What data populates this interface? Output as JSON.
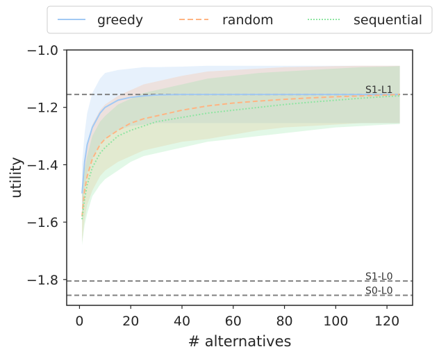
{
  "chart_data": {
    "type": "line",
    "title": "",
    "xlabel": "# alternatives",
    "ylabel": "utility",
    "xlim": [
      -5,
      130
    ],
    "ylim": [
      -1.89,
      -1.0
    ],
    "xticks": [
      0,
      20,
      40,
      60,
      80,
      100,
      120
    ],
    "yticks": [
      -1.0,
      -1.2,
      -1.4,
      -1.6,
      -1.8
    ],
    "ytick_labels": [
      "−1.0",
      "−1.2",
      "−1.4",
      "−1.6",
      "−1.8"
    ],
    "grid": false,
    "legend_position": "top-outside",
    "x": [
      1,
      2,
      3,
      5,
      8,
      10,
      15,
      20,
      25,
      30,
      40,
      50,
      60,
      70,
      80,
      90,
      100,
      110,
      120,
      125
    ],
    "series": [
      {
        "name": "greedy",
        "color": "#a1c9f4",
        "style": "solid",
        "values": [
          -1.5,
          -1.39,
          -1.33,
          -1.27,
          -1.22,
          -1.2,
          -1.175,
          -1.165,
          -1.16,
          -1.157,
          -1.155,
          -1.155,
          -1.155,
          -1.155,
          -1.155,
          -1.155,
          -1.155,
          -1.155,
          -1.155,
          -1.155
        ],
        "upper": [
          -1.4,
          -1.29,
          -1.22,
          -1.15,
          -1.1,
          -1.08,
          -1.07,
          -1.065,
          -1.06,
          -1.06,
          -1.058,
          -1.055,
          -1.055,
          -1.055,
          -1.055,
          -1.055,
          -1.055,
          -1.055,
          -1.055,
          -1.055
        ],
        "lower": [
          -1.6,
          -1.49,
          -1.43,
          -1.38,
          -1.33,
          -1.31,
          -1.28,
          -1.265,
          -1.26,
          -1.255,
          -1.255,
          -1.255,
          -1.255,
          -1.255,
          -1.255,
          -1.255,
          -1.255,
          -1.255,
          -1.255,
          -1.255
        ]
      },
      {
        "name": "random",
        "color": "#ffb482",
        "style": "dashed",
        "values": [
          -1.58,
          -1.49,
          -1.44,
          -1.38,
          -1.33,
          -1.31,
          -1.28,
          -1.255,
          -1.24,
          -1.23,
          -1.21,
          -1.195,
          -1.185,
          -1.178,
          -1.172,
          -1.167,
          -1.163,
          -1.16,
          -1.157,
          -1.155
        ],
        "upper": [
          -1.49,
          -1.38,
          -1.33,
          -1.26,
          -1.21,
          -1.19,
          -1.16,
          -1.14,
          -1.12,
          -1.11,
          -1.09,
          -1.075,
          -1.07,
          -1.065,
          -1.06,
          -1.058,
          -1.056,
          -1.055,
          -1.055,
          -1.055
        ],
        "lower": [
          -1.67,
          -1.59,
          -1.54,
          -1.49,
          -1.44,
          -1.42,
          -1.39,
          -1.37,
          -1.35,
          -1.34,
          -1.32,
          -1.31,
          -1.295,
          -1.28,
          -1.27,
          -1.265,
          -1.26,
          -1.255,
          -1.255,
          -1.255
        ]
      },
      {
        "name": "sequential",
        "color": "#8de5a1",
        "style": "dotted",
        "values": [
          -1.59,
          -1.52,
          -1.47,
          -1.41,
          -1.36,
          -1.34,
          -1.3,
          -1.28,
          -1.265,
          -1.25,
          -1.235,
          -1.22,
          -1.21,
          -1.2,
          -1.19,
          -1.182,
          -1.175,
          -1.168,
          -1.162,
          -1.16
        ],
        "upper": [
          -1.5,
          -1.42,
          -1.37,
          -1.3,
          -1.25,
          -1.23,
          -1.19,
          -1.17,
          -1.15,
          -1.14,
          -1.12,
          -1.1,
          -1.09,
          -1.08,
          -1.075,
          -1.07,
          -1.065,
          -1.06,
          -1.058,
          -1.056
        ],
        "lower": [
          -1.68,
          -1.61,
          -1.57,
          -1.51,
          -1.47,
          -1.45,
          -1.42,
          -1.39,
          -1.37,
          -1.36,
          -1.34,
          -1.32,
          -1.31,
          -1.3,
          -1.29,
          -1.28,
          -1.27,
          -1.265,
          -1.26,
          -1.258
        ]
      }
    ],
    "reference_lines": [
      {
        "label": "S1-L1",
        "y": -1.155
      },
      {
        "label": "S1-L0",
        "y": -1.805
      },
      {
        "label": "S0-L0",
        "y": -1.855
      }
    ]
  }
}
